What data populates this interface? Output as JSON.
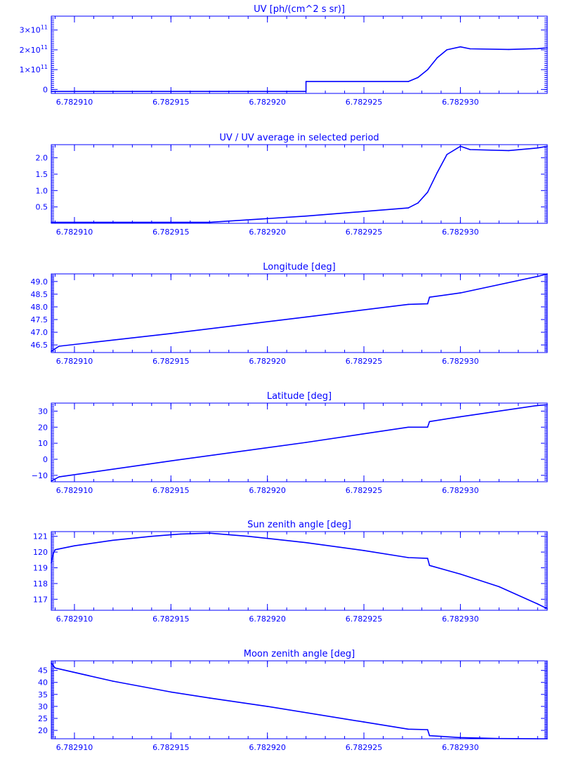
{
  "style": {
    "color": "#0000ff",
    "background": "#ffffff"
  },
  "chart_data": [
    {
      "type": "line",
      "title": "UV [ph/(cm^2 s sr)]",
      "xlim": [
        6.7829088,
        6.7829345
      ],
      "ylim": [
        -20000000000.0,
        370000000000.0
      ],
      "x_ticks": [
        6.78291,
        6.782915,
        6.78292,
        6.782925,
        6.78293
      ],
      "x_tick_labels": [
        "6.782910",
        "6.782915",
        "6.782920",
        "6.782925",
        "6.782930"
      ],
      "y_ticks": [
        0,
        100000000000.0,
        200000000000.0,
        300000000000.0
      ],
      "y_tick_labels": [
        {
          "base": "0",
          "exp": ""
        },
        {
          "base": "1×10",
          "exp": "11"
        },
        {
          "base": "2×10",
          "exp": "11"
        },
        {
          "base": "3×10",
          "exp": "11"
        }
      ],
      "step": true,
      "x": [
        6.7829088,
        6.782922,
        6.782922,
        6.7829273,
        6.7829278,
        6.7829283,
        6.7829288,
        6.7829293,
        6.78293,
        6.7829305,
        6.7829325,
        6.782934,
        6.7829345
      ],
      "y": [
        -10000000000.0,
        -10000000000.0,
        40000000000.0,
        40000000000.0,
        60000000000.0,
        100000000000.0,
        160000000000.0,
        200000000000.0,
        215000000000.0,
        205000000000.0,
        202000000000.0,
        206000000000.0,
        210000000000.0
      ]
    },
    {
      "type": "line",
      "title": "UV / UV average in selected period",
      "xlim": [
        6.7829088,
        6.7829345
      ],
      "ylim": [
        0,
        2.4
      ],
      "x_ticks": [
        6.78291,
        6.782915,
        6.78292,
        6.782925,
        6.78293
      ],
      "x_tick_labels": [
        "6.782910",
        "6.782915",
        "6.782920",
        "6.782925",
        "6.782930"
      ],
      "y_ticks": [
        0.5,
        1.0,
        1.5,
        2.0
      ],
      "y_tick_labels": [
        {
          "base": "0.5",
          "exp": ""
        },
        {
          "base": "1.0",
          "exp": ""
        },
        {
          "base": "1.5",
          "exp": ""
        },
        {
          "base": "2.0",
          "exp": ""
        }
      ],
      "step": false,
      "x": [
        6.7829088,
        6.782917,
        6.782922,
        6.7829273,
        6.7829278,
        6.7829283,
        6.7829288,
        6.7829293,
        6.78293,
        6.7829305,
        6.7829325,
        6.782934,
        6.7829345
      ],
      "y": [
        0.03,
        0.03,
        0.22,
        0.47,
        0.62,
        0.95,
        1.55,
        2.1,
        2.35,
        2.25,
        2.22,
        2.3,
        2.35
      ]
    },
    {
      "type": "line",
      "title": "Longitude [deg]",
      "xlim": [
        6.7829088,
        6.7829345
      ],
      "ylim": [
        46.2,
        49.3
      ],
      "x_ticks": [
        6.78291,
        6.782915,
        6.78292,
        6.782925,
        6.78293
      ],
      "x_tick_labels": [
        "6.782910",
        "6.782915",
        "6.782920",
        "6.782925",
        "6.782930"
      ],
      "y_ticks": [
        46.5,
        47.0,
        47.5,
        48.0,
        48.5,
        49.0
      ],
      "y_tick_labels": [
        {
          "base": "46.5",
          "exp": ""
        },
        {
          "base": "47.0",
          "exp": ""
        },
        {
          "base": "47.5",
          "exp": ""
        },
        {
          "base": "48.0",
          "exp": ""
        },
        {
          "base": "48.5",
          "exp": ""
        },
        {
          "base": "49.0",
          "exp": ""
        }
      ],
      "step": false,
      "x": [
        6.7829088,
        6.7829092,
        6.782915,
        6.782922,
        6.7829273,
        6.7829283,
        6.7829284,
        6.78293,
        6.782934,
        6.7829345
      ],
      "y": [
        46.25,
        46.45,
        46.95,
        47.6,
        48.1,
        48.12,
        48.38,
        48.55,
        49.2,
        49.3
      ]
    },
    {
      "type": "line",
      "title": "Latitude [deg]",
      "xlim": [
        6.7829088,
        6.7829345
      ],
      "ylim": [
        -14,
        35
      ],
      "x_ticks": [
        6.78291,
        6.782915,
        6.78292,
        6.782925,
        6.78293
      ],
      "x_tick_labels": [
        "6.782910",
        "6.782915",
        "6.782920",
        "6.782925",
        "6.782930"
      ],
      "y_ticks": [
        -10,
        0,
        10,
        20,
        30
      ],
      "y_tick_labels": [
        {
          "base": "−10",
          "exp": ""
        },
        {
          "base": "0",
          "exp": ""
        },
        {
          "base": "10",
          "exp": ""
        },
        {
          "base": "20",
          "exp": ""
        },
        {
          "base": "30",
          "exp": ""
        }
      ],
      "step": false,
      "x": [
        6.7829088,
        6.7829092,
        6.782915,
        6.782922,
        6.7829273,
        6.7829283,
        6.7829284,
        6.78293,
        6.782934,
        6.7829345
      ],
      "y": [
        -13.5,
        -11,
        -1,
        10.5,
        20,
        20,
        23.5,
        26.5,
        33.5,
        34
      ]
    },
    {
      "type": "line",
      "title": "Sun zenith angle [deg]",
      "xlim": [
        6.7829088,
        6.7829345
      ],
      "ylim": [
        116.3,
        121.3
      ],
      "x_ticks": [
        6.78291,
        6.782915,
        6.78292,
        6.782925,
        6.78293
      ],
      "x_tick_labels": [
        "6.782910",
        "6.782915",
        "6.782920",
        "6.782925",
        "6.782930"
      ],
      "y_ticks": [
        117,
        118,
        119,
        120,
        121
      ],
      "y_tick_labels": [
        {
          "base": "117",
          "exp": ""
        },
        {
          "base": "118",
          "exp": ""
        },
        {
          "base": "119",
          "exp": ""
        },
        {
          "base": "120",
          "exp": ""
        },
        {
          "base": "121",
          "exp": ""
        }
      ],
      "step": false,
      "x": [
        6.7829088,
        6.7829089,
        6.782909,
        6.78291,
        6.782912,
        6.782914,
        6.7829155,
        6.782917,
        6.782919,
        6.782922,
        6.782925,
        6.7829273,
        6.7829283,
        6.7829284,
        6.78293,
        6.782932,
        6.782934,
        6.7829345
      ],
      "y": [
        119.3,
        119.9,
        120.15,
        120.4,
        120.75,
        121.0,
        121.15,
        121.2,
        121.0,
        120.6,
        120.1,
        119.65,
        119.6,
        119.15,
        118.6,
        117.8,
        116.7,
        116.4
      ]
    },
    {
      "type": "line",
      "title": "Moon zenith angle [deg]",
      "xlim": [
        6.7829088,
        6.7829345
      ],
      "ylim": [
        16.5,
        49
      ],
      "x_ticks": [
        6.78291,
        6.782915,
        6.78292,
        6.782925,
        6.78293
      ],
      "x_tick_labels": [
        "6.782910",
        "6.782915",
        "6.782920",
        "6.782925",
        "6.782930"
      ],
      "y_ticks": [
        20,
        25,
        30,
        35,
        40,
        45
      ],
      "y_tick_labels": [
        {
          "base": "20",
          "exp": ""
        },
        {
          "base": "25",
          "exp": ""
        },
        {
          "base": "30",
          "exp": ""
        },
        {
          "base": "35",
          "exp": ""
        },
        {
          "base": "40",
          "exp": ""
        },
        {
          "base": "45",
          "exp": ""
        }
      ],
      "step": false,
      "x": [
        6.7829088,
        6.782909,
        6.782912,
        6.782915,
        6.782917,
        6.78292,
        6.782925,
        6.7829273,
        6.7829283,
        6.7829284,
        6.78293,
        6.782932,
        6.782934,
        6.7829345
      ],
      "y": [
        48,
        46,
        40.5,
        36,
        33.5,
        30,
        23.5,
        20.5,
        20.3,
        17.8,
        17.0,
        16.6,
        16.5,
        16.5
      ]
    }
  ]
}
